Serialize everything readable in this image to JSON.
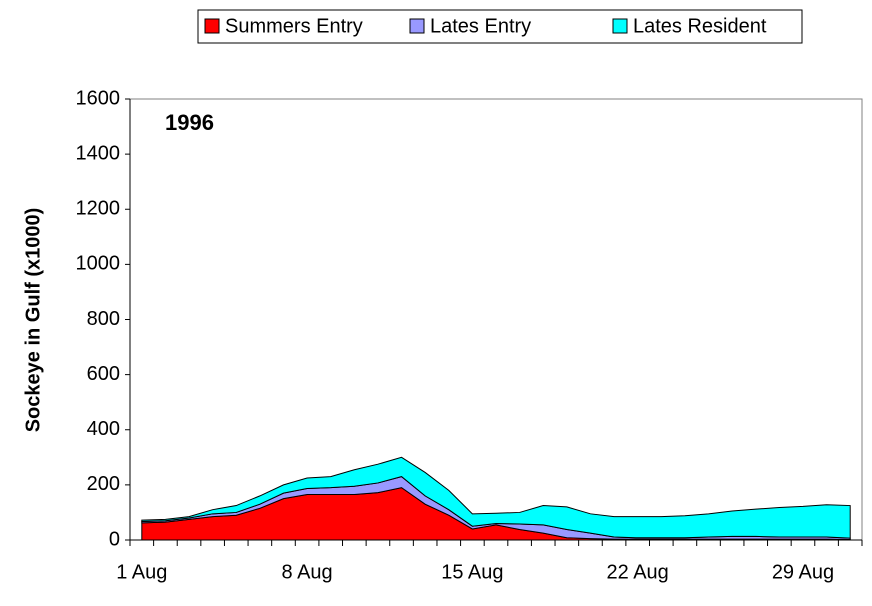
{
  "chart_data": {
    "type": "stacked-area",
    "title": "1996",
    "y_label": "Sockeye in Gulf (x1000)",
    "categories": [
      "1 Aug",
      null,
      null,
      null,
      null,
      null,
      null,
      "8 Aug",
      null,
      null,
      null,
      null,
      null,
      null,
      "15 Aug",
      null,
      null,
      null,
      null,
      null,
      null,
      "22 Aug",
      null,
      null,
      null,
      null,
      null,
      null,
      "29 Aug",
      null,
      null
    ],
    "series": [
      {
        "name": "Summers Entry",
        "color": "#ff0000",
        "values": [
          62,
          65,
          75,
          85,
          90,
          115,
          150,
          165,
          165,
          165,
          172,
          190,
          130,
          90,
          40,
          55,
          38,
          25,
          8,
          5,
          3,
          3,
          3,
          3,
          3,
          3,
          3,
          3,
          3,
          3,
          2
        ]
      },
      {
        "name": "Lates Entry",
        "color": "#9999ff",
        "values": [
          5,
          5,
          5,
          10,
          10,
          15,
          20,
          22,
          25,
          30,
          35,
          40,
          30,
          20,
          10,
          5,
          20,
          30,
          30,
          20,
          8,
          5,
          5,
          5,
          8,
          10,
          10,
          8,
          8,
          8,
          5
        ]
      },
      {
        "name": "Lates Resident",
        "color": "#00ffff",
        "values": [
          5,
          5,
          5,
          15,
          25,
          30,
          30,
          38,
          40,
          60,
          68,
          70,
          85,
          70,
          45,
          37,
          42,
          70,
          82,
          70,
          74,
          77,
          77,
          80,
          84,
          92,
          99,
          107,
          111,
          117,
          118
        ]
      }
    ],
    "ylim": [
      0,
      1600
    ],
    "yticks": [
      0,
      200,
      400,
      600,
      800,
      1000,
      1200,
      1400,
      1600
    ],
    "legend": "top"
  }
}
